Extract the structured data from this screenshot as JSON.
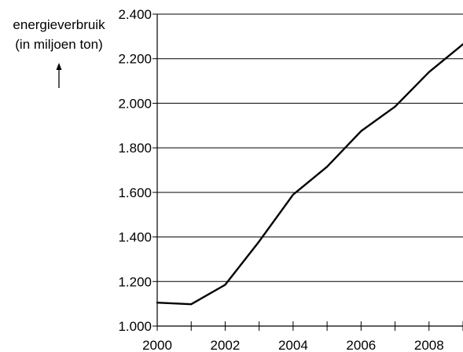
{
  "chart_data": {
    "type": "line",
    "ylabel_lines": [
      "energieverbruik",
      "(in miljoen ton)"
    ],
    "xlabel": "",
    "title": "",
    "x_ticks": [
      "2000",
      "2002",
      "2004",
      "2006",
      "2008"
    ],
    "y_ticks": [
      "1.000",
      "1.200",
      "1.400",
      "1.600",
      "1.800",
      "2.000",
      "2.200",
      "2.400"
    ],
    "xlim": [
      2000,
      2009
    ],
    "ylim": [
      1000,
      2400
    ],
    "grid": "horizontal",
    "x": [
      2000,
      2001,
      2002,
      2003,
      2004,
      2005,
      2006,
      2007,
      2008,
      2009
    ],
    "values": [
      1105,
      1098,
      1185,
      1380,
      1590,
      1715,
      1875,
      1985,
      2140,
      2265
    ],
    "line_color": "#000000"
  }
}
